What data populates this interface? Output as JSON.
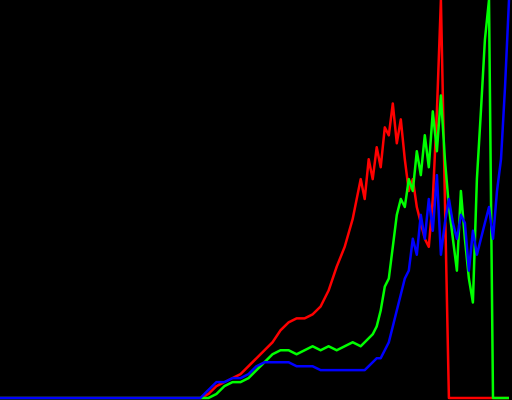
{
  "chart_data": {
    "type": "line",
    "title": "",
    "xlabel": "",
    "ylabel": "",
    "background": "#000000",
    "grid": false,
    "legend": "none",
    "xlim": [
      0,
      255
    ],
    "ylim": [
      0,
      1
    ],
    "x": [
      0,
      10,
      20,
      30,
      40,
      50,
      60,
      70,
      80,
      90,
      100,
      104,
      108,
      112,
      116,
      120,
      124,
      128,
      132,
      136,
      140,
      144,
      148,
      152,
      156,
      160,
      164,
      168,
      172,
      176,
      180,
      182,
      184,
      186,
      188,
      190,
      192,
      194,
      196,
      198,
      200,
      202,
      204,
      206,
      208,
      210,
      212,
      214,
      216,
      218,
      220,
      222,
      224,
      226,
      228,
      230,
      232,
      234,
      236,
      238,
      240,
      242,
      244,
      246,
      248,
      250,
      252,
      254
    ],
    "series": [
      {
        "name": "",
        "color": "#ff0000",
        "values": [
          0,
          0,
          0,
          0,
          0,
          0,
          0,
          0,
          0,
          0,
          0,
          0.01,
          0.03,
          0.04,
          0.05,
          0.06,
          0.08,
          0.1,
          0.12,
          0.14,
          0.17,
          0.19,
          0.2,
          0.2,
          0.21,
          0.23,
          0.27,
          0.33,
          0.38,
          0.45,
          0.55,
          0.5,
          0.6,
          0.55,
          0.63,
          0.58,
          0.68,
          0.66,
          0.74,
          0.64,
          0.7,
          0.6,
          0.52,
          0.55,
          0.48,
          0.44,
          0.4,
          0.38,
          0.5,
          0.72,
          1.0,
          0.5,
          0.0,
          0,
          0,
          0,
          0,
          0,
          0,
          0,
          0,
          0,
          0,
          0,
          0,
          0,
          0,
          0
        ]
      },
      {
        "name": "",
        "color": "#00ff00",
        "values": [
          0,
          0,
          0,
          0,
          0,
          0,
          0,
          0,
          0,
          0,
          0,
          0,
          0.01,
          0.03,
          0.04,
          0.04,
          0.05,
          0.07,
          0.09,
          0.11,
          0.12,
          0.12,
          0.11,
          0.12,
          0.13,
          0.12,
          0.13,
          0.12,
          0.13,
          0.14,
          0.13,
          0.14,
          0.15,
          0.16,
          0.18,
          0.22,
          0.28,
          0.3,
          0.38,
          0.46,
          0.5,
          0.48,
          0.55,
          0.52,
          0.62,
          0.56,
          0.66,
          0.58,
          0.72,
          0.62,
          0.76,
          0.6,
          0.48,
          0.4,
          0.32,
          0.52,
          0.4,
          0.3,
          0.24,
          0.55,
          0.72,
          0.9,
          1.0,
          0.0,
          0,
          0,
          0,
          0
        ]
      },
      {
        "name": "",
        "color": "#0000ff",
        "values": [
          0,
          0,
          0,
          0,
          0,
          0,
          0,
          0,
          0,
          0,
          0,
          0.02,
          0.04,
          0.04,
          0.05,
          0.05,
          0.06,
          0.08,
          0.09,
          0.09,
          0.09,
          0.09,
          0.08,
          0.08,
          0.08,
          0.07,
          0.07,
          0.07,
          0.07,
          0.07,
          0.07,
          0.07,
          0.08,
          0.09,
          0.1,
          0.1,
          0.12,
          0.14,
          0.18,
          0.22,
          0.26,
          0.3,
          0.32,
          0.4,
          0.36,
          0.46,
          0.4,
          0.5,
          0.42,
          0.56,
          0.36,
          0.44,
          0.5,
          0.44,
          0.4,
          0.46,
          0.44,
          0.32,
          0.42,
          0.36,
          0.4,
          0.44,
          0.48,
          0.4,
          0.52,
          0.6,
          0.78,
          1.0
        ]
      }
    ]
  }
}
